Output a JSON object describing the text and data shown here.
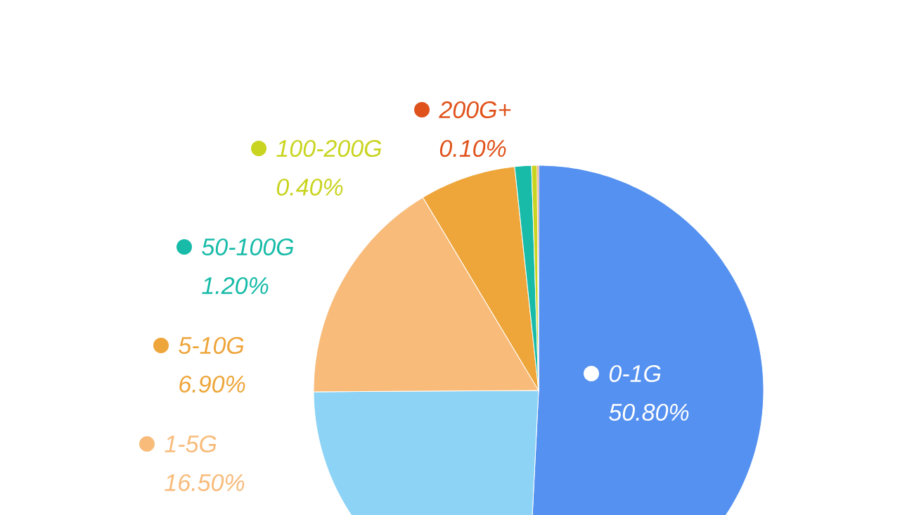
{
  "chart_data": {
    "type": "pie",
    "categories": [
      "0-1G",
      null,
      "1-5G",
      "5-10G",
      "50-100G",
      "100-200G",
      "200G+"
    ],
    "values": [
      50.8,
      24.1,
      16.5,
      6.9,
      1.2,
      0.4,
      0.1
    ],
    "colors": [
      "#5591f0",
      "#8dd3f5",
      "#f8bb7a",
      "#eea53a",
      "#17bba8",
      "#c9d420",
      "#e0521b"
    ],
    "value_labels": [
      "50.80%",
      null,
      "16.50%",
      "6.90%",
      "1.20%",
      "0.40%",
      "0.10%"
    ],
    "legend": "left"
  }
}
